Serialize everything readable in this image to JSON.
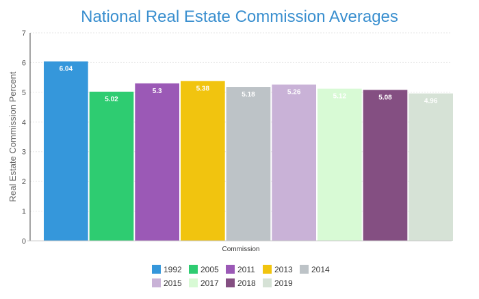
{
  "chart_data": {
    "type": "bar",
    "title": "National Real Estate Commission Averages",
    "xlabel": "Commission",
    "ylabel": "Real Estate Commission Percent",
    "ylim": [
      0,
      7
    ],
    "yticks": [
      0,
      1,
      2,
      3,
      4,
      5,
      6,
      7
    ],
    "categories": [
      "Commission"
    ],
    "series": [
      {
        "name": "1992",
        "value": 6.04,
        "label": "6.04",
        "color": "#3597db"
      },
      {
        "name": "2005",
        "value": 5.02,
        "label": "5.02",
        "color": "#2ecc71"
      },
      {
        "name": "2011",
        "value": 5.3,
        "label": "5.3",
        "color": "#9b59b6"
      },
      {
        "name": "2013",
        "value": 5.38,
        "label": "5.38",
        "color": "#f1c40f"
      },
      {
        "name": "2014",
        "value": 5.18,
        "label": "5.18",
        "color": "#bdc3c7"
      },
      {
        "name": "2015",
        "value": 5.26,
        "label": "5.26",
        "color": "#c9b2d7"
      },
      {
        "name": "2017",
        "value": 5.12,
        "label": "5.12",
        "color": "#d8fad5"
      },
      {
        "name": "2018",
        "value": 5.08,
        "label": "5.08",
        "color": "#844f82"
      },
      {
        "name": "2019",
        "value": 4.96,
        "label": "4.96",
        "color": "#d6e2d6"
      }
    ],
    "grid": true,
    "legend": "bottom"
  }
}
